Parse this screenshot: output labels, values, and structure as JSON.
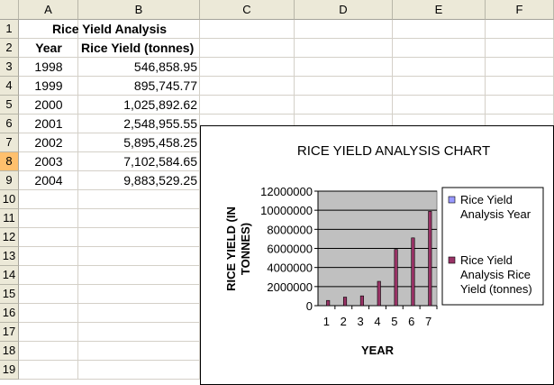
{
  "columns": [
    "A",
    "B",
    "C",
    "D",
    "E",
    "F"
  ],
  "rows": [
    "1",
    "2",
    "3",
    "4",
    "5",
    "6",
    "7",
    "8",
    "9",
    "10",
    "11",
    "12",
    "13",
    "14",
    "15",
    "16",
    "17",
    "18",
    "19"
  ],
  "selected_row": "8",
  "sheet": {
    "title": "Rice Yield Analysis",
    "header_year": "Year",
    "header_yield": "Rice Yield (tonnes)",
    "data": [
      {
        "year": "1998",
        "yield": "546,858.95"
      },
      {
        "year": "1999",
        "yield": "895,745.77"
      },
      {
        "year": "2000",
        "yield": "1,025,892.62"
      },
      {
        "year": "2001",
        "yield": "2,548,955.55"
      },
      {
        "year": "2002",
        "yield": "5,895,458.25"
      },
      {
        "year": "2003",
        "yield": "7,102,584.65"
      },
      {
        "year": "2004",
        "yield": "9,883,529.25"
      }
    ]
  },
  "chart_data": {
    "type": "bar",
    "title": "RICE YIELD ANALYSIS CHART",
    "xlabel": "YEAR",
    "ylabel": "RICE YIELD (IN TONNES)",
    "categories": [
      "1",
      "2",
      "3",
      "4",
      "5",
      "6",
      "7"
    ],
    "yticks": [
      "0",
      "2000000",
      "4000000",
      "6000000",
      "8000000",
      "10000000",
      "12000000"
    ],
    "ylim": [
      0,
      12000000
    ],
    "grid": true,
    "legend_position": "right",
    "plot_background": "#c0c0c0",
    "series": [
      {
        "name": "Rice Yield Analysis Year",
        "color": "#9999ff",
        "values": [
          1998,
          1999,
          2000,
          2001,
          2002,
          2003,
          2004
        ]
      },
      {
        "name": "Rice Yield Analysis Rice Yield (tonnes)",
        "color": "#993366",
        "values": [
          546858.95,
          895745.77,
          1025892.62,
          2548955.55,
          5895458.25,
          7102584.65,
          9883529.25
        ]
      }
    ],
    "legend_lines": [
      [
        "Rice Yield",
        "Analysis  Year"
      ],
      [
        "Rice Yield",
        "Analysis  Rice",
        "Yield (tonnes)"
      ]
    ]
  }
}
